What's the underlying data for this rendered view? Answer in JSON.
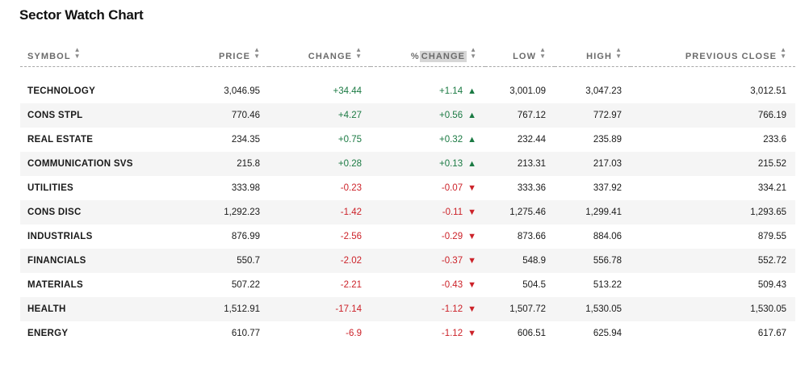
{
  "title": "Sector Watch Chart",
  "columns": {
    "symbol": "SYMBOL",
    "price": "PRICE",
    "change": "CHANGE",
    "pct_prefix": "%",
    "pct_label": "CHANGE",
    "low": "LOW",
    "high": "HIGH",
    "prev_close": "PREVIOUS CLOSE"
  },
  "sort_icon": "sort-arrows-icon",
  "colors": {
    "positive": "#1b7a43",
    "negative": "#cc2229"
  },
  "rows": [
    {
      "symbol": "TECHNOLOGY",
      "price": "3,046.95",
      "change": "+34.44",
      "pct": "+1.14",
      "dir": "up",
      "low": "3,001.09",
      "high": "3,047.23",
      "prev": "3,012.51"
    },
    {
      "symbol": "CONS STPL",
      "price": "770.46",
      "change": "+4.27",
      "pct": "+0.56",
      "dir": "up",
      "low": "767.12",
      "high": "772.97",
      "prev": "766.19"
    },
    {
      "symbol": "REAL ESTATE",
      "price": "234.35",
      "change": "+0.75",
      "pct": "+0.32",
      "dir": "up",
      "low": "232.44",
      "high": "235.89",
      "prev": "233.6"
    },
    {
      "symbol": "COMMUNICATION SVS",
      "price": "215.8",
      "change": "+0.28",
      "pct": "+0.13",
      "dir": "up",
      "low": "213.31",
      "high": "217.03",
      "prev": "215.52"
    },
    {
      "symbol": "UTILITIES",
      "price": "333.98",
      "change": "-0.23",
      "pct": "-0.07",
      "dir": "down",
      "low": "333.36",
      "high": "337.92",
      "prev": "334.21"
    },
    {
      "symbol": "CONS DISC",
      "price": "1,292.23",
      "change": "-1.42",
      "pct": "-0.11",
      "dir": "down",
      "low": "1,275.46",
      "high": "1,299.41",
      "prev": "1,293.65"
    },
    {
      "symbol": "INDUSTRIALS",
      "price": "876.99",
      "change": "-2.56",
      "pct": "-0.29",
      "dir": "down",
      "low": "873.66",
      "high": "884.06",
      "prev": "879.55"
    },
    {
      "symbol": "FINANCIALS",
      "price": "550.7",
      "change": "-2.02",
      "pct": "-0.37",
      "dir": "down",
      "low": "548.9",
      "high": "556.78",
      "prev": "552.72"
    },
    {
      "symbol": "MATERIALS",
      "price": "507.22",
      "change": "-2.21",
      "pct": "-0.43",
      "dir": "down",
      "low": "504.5",
      "high": "513.22",
      "prev": "509.43"
    },
    {
      "symbol": "HEALTH",
      "price": "1,512.91",
      "change": "-17.14",
      "pct": "-1.12",
      "dir": "down",
      "low": "1,507.72",
      "high": "1,530.05",
      "prev": "1,530.05"
    },
    {
      "symbol": "ENERGY",
      "price": "610.77",
      "change": "-6.9",
      "pct": "-1.12",
      "dir": "down",
      "low": "606.51",
      "high": "625.94",
      "prev": "617.67"
    }
  ]
}
